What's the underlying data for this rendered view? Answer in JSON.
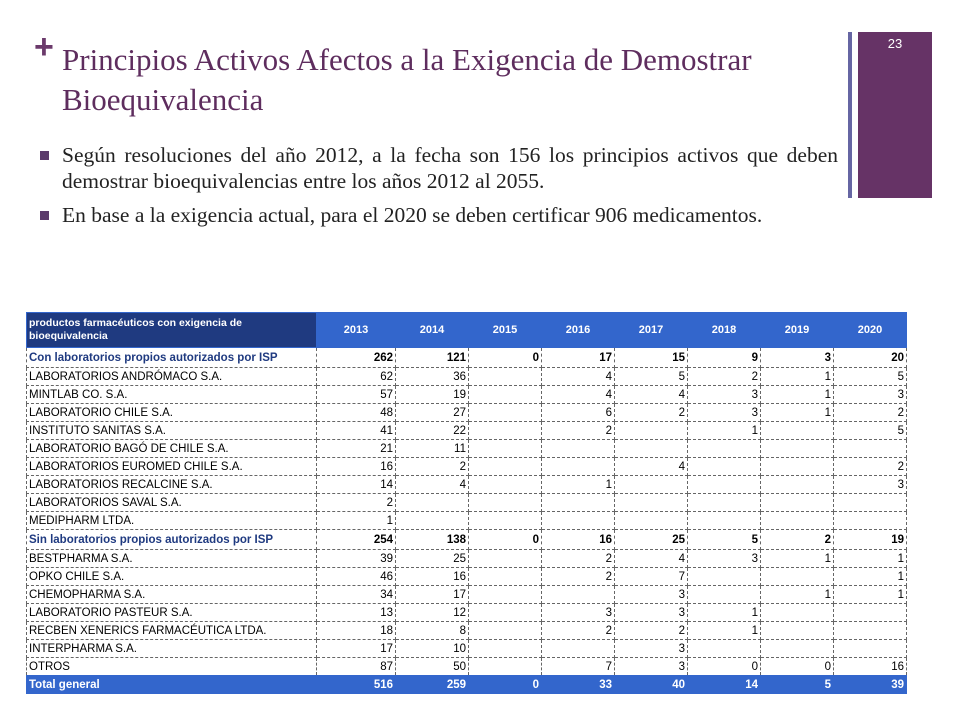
{
  "slide": {
    "title": "Principios Activos Afectos a la Exigencia de Demostrar Bioequivalencia",
    "page_number": "23",
    "bullets": [
      "Según resoluciones del año 2012,  a la fecha son 156 los principios activos que deben demostrar bioequivalencias entre los años 2012 al 2055.",
      "En base a la exigencia actual, para el 2020 se deben certificar 906 medicamentos."
    ],
    "colors": {
      "title": "#5e2d5e",
      "sidebar": "#663366",
      "table_header": "#3366cc"
    }
  },
  "table": {
    "corner_header": "productos farmacéuticos con exigencia de bioequivalencia",
    "years": [
      "2013",
      "2014",
      "2015",
      "2016",
      "2017",
      "2018",
      "2019",
      "2020"
    ],
    "rows": [
      {
        "type": "group",
        "name": "Con laboratorios propios autorizados por ISP",
        "values": [
          "262",
          "121",
          "0",
          "17",
          "15",
          "9",
          "3",
          "20"
        ]
      },
      {
        "type": "item",
        "name": "LABORATORIOS  ANDRÓMACO  S.A.",
        "values": [
          "62",
          "36",
          "",
          "4",
          "5",
          "2",
          "1",
          "5"
        ]
      },
      {
        "type": "item",
        "name": "MINTLAB  CO.  S.A.",
        "values": [
          "57",
          "19",
          "",
          "4",
          "4",
          "3",
          "1",
          "3"
        ]
      },
      {
        "type": "item",
        "name": "LABORATORIO  CHILE S.A.",
        "values": [
          "48",
          "27",
          "",
          "6",
          "2",
          "3",
          "1",
          "2"
        ]
      },
      {
        "type": "item",
        "name": "INSTITUTO  SANITAS S.A.",
        "values": [
          "41",
          "22",
          "",
          "2",
          "",
          "1",
          "",
          "5"
        ]
      },
      {
        "type": "item",
        "name": "LABORATORIO  BAGÓ DE CHILE  S.A.",
        "values": [
          "21",
          "11",
          "",
          "",
          "",
          "",
          "",
          ""
        ]
      },
      {
        "type": "item",
        "name": "LABORATORIOS  EUROMED CHILE  S.A.",
        "values": [
          "16",
          "2",
          "",
          "",
          "4",
          "",
          "",
          "2"
        ]
      },
      {
        "type": "item",
        "name": "LABORATORIOS  RECALCINE  S.A.",
        "values": [
          "14",
          "4",
          "",
          "1",
          "",
          "",
          "",
          "3"
        ]
      },
      {
        "type": "item",
        "name": "LABORATORIOS  SAVAL S.A.",
        "values": [
          "2",
          "",
          "",
          "",
          "",
          "",
          "",
          ""
        ]
      },
      {
        "type": "item",
        "name": "MEDIPHARM  LTDA.",
        "values": [
          "1",
          "",
          "",
          "",
          "",
          "",
          "",
          ""
        ]
      },
      {
        "type": "group",
        "name": "Sin laboratorios propios autorizados por ISP",
        "values": [
          "254",
          "138",
          "0",
          "16",
          "25",
          "5",
          "2",
          "19"
        ]
      },
      {
        "type": "item",
        "name": "BESTPHARMA  S.A.",
        "values": [
          "39",
          "25",
          "",
          "2",
          "4",
          "3",
          "1",
          "1"
        ]
      },
      {
        "type": "item",
        "name": "OPKO CHILE  S.A.",
        "values": [
          "46",
          "16",
          "",
          "2",
          "7",
          "",
          "",
          "1"
        ]
      },
      {
        "type": "item",
        "name": "CHEMOPHARMA  S.A.",
        "values": [
          "34",
          "17",
          "",
          "",
          "3",
          "",
          "1",
          "1"
        ]
      },
      {
        "type": "item",
        "name": "LABORATORIO  PASTEUR S.A.",
        "values": [
          "13",
          "12",
          "",
          "3",
          "3",
          "1",
          "",
          ""
        ]
      },
      {
        "type": "item",
        "name": "RECBEN  XENERICS  FARMACÉUTICA  LTDA.",
        "values": [
          "18",
          "8",
          "",
          "2",
          "2",
          "1",
          "",
          ""
        ]
      },
      {
        "type": "item",
        "name": "INTERPHARMA  S.A.",
        "values": [
          "17",
          "10",
          "",
          "",
          "3",
          "",
          "",
          ""
        ]
      },
      {
        "type": "item",
        "name": "OTROS",
        "values": [
          "87",
          "50",
          "",
          "7",
          "3",
          "0",
          "0",
          "16"
        ]
      },
      {
        "type": "total",
        "name": "Total general",
        "values": [
          "516",
          "259",
          "0",
          "33",
          "40",
          "14",
          "5",
          "39"
        ]
      }
    ]
  }
}
